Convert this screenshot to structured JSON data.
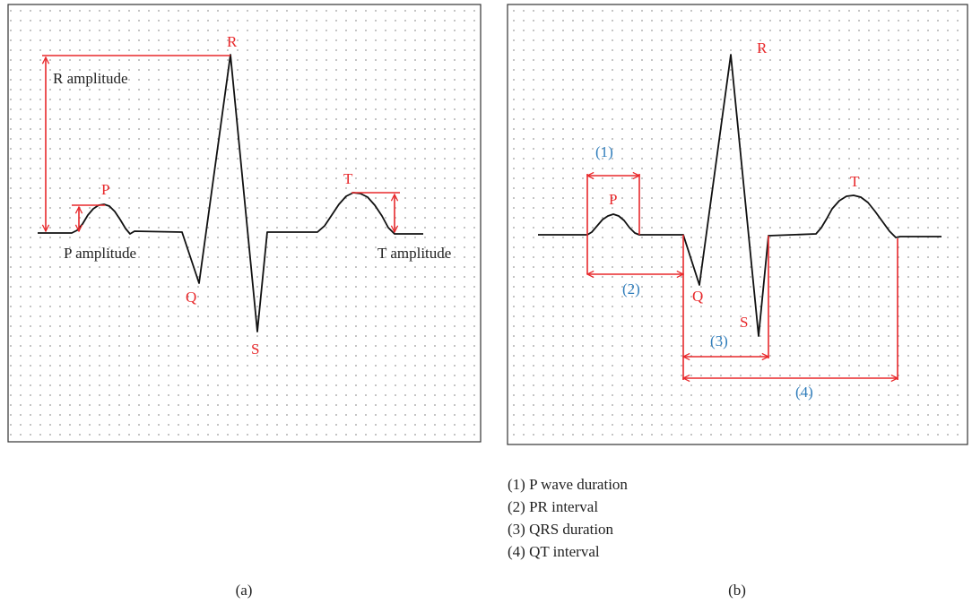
{
  "panel_a": {
    "wave_labels": {
      "p": "P",
      "q": "Q",
      "r": "R",
      "s": "S",
      "t": "T"
    },
    "amplitude_labels": {
      "r": "R amplitude",
      "p": "P amplitude",
      "t": "T amplitude"
    },
    "caption": "(a)"
  },
  "panel_b": {
    "wave_labels": {
      "p": "P",
      "q": "Q",
      "r": "R",
      "s": "S",
      "t": "T"
    },
    "markers": {
      "m1": "(1)",
      "m2": "(2)",
      "m3": "(3)",
      "m4": "(4)"
    },
    "caption": "(b)"
  },
  "legend": [
    "(1) P wave duration",
    "(2) PR interval",
    "(3) QRS duration",
    "(4) QT interval"
  ],
  "colors": {
    "measurement": "#e8282b",
    "wave_label": "#e8282b",
    "marker_label": "#2f7dbb",
    "trace": "#111111",
    "grid_dot": "#9a9a9a"
  }
}
